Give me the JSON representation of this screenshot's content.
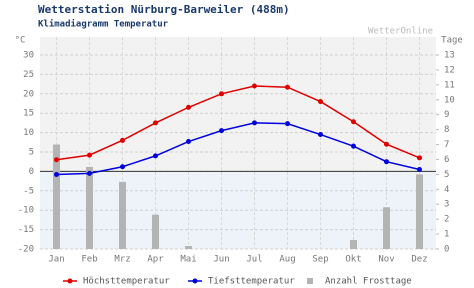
{
  "chart_data": {
    "type": "line",
    "title": "Wetterstation Nürburg-Barweiler (488m)",
    "subtitle": "Klimadiagramm Temperatur",
    "source": "WetterOnline",
    "y_label": "°C",
    "y2_label": "Tage",
    "categories": [
      "Jan",
      "Feb",
      "Mrz",
      "Apr",
      "Mai",
      "Jun",
      "Jul",
      "Aug",
      "Sep",
      "Okt",
      "Nov",
      "Dez"
    ],
    "series": [
      {
        "name": "Höchsttemperatur",
        "color": "#e00000",
        "values": [
          3,
          4.2,
          8,
          12.5,
          16.5,
          20,
          22,
          21.7,
          18,
          12.8,
          7,
          3.5
        ]
      },
      {
        "name": "Tiefsttemperatur",
        "color": "#0000dd",
        "values": [
          -0.8,
          -0.5,
          1.2,
          4,
          7.7,
          10.5,
          12.5,
          12.3,
          9.5,
          6.5,
          2.5,
          0.5
        ]
      },
      {
        "name": "Anzahl Frosttage",
        "color": "#b4b4b4",
        "axis": "y2",
        "type": "bar",
        "values": [
          7,
          5.5,
          4.5,
          2.3,
          0.2,
          0,
          0,
          0,
          0,
          0.6,
          2.8,
          5
        ]
      }
    ],
    "ylim": [
      -20,
      30
    ],
    "yticks": [
      -20,
      -15,
      -10,
      -5,
      0,
      5,
      10,
      15,
      20,
      25,
      30
    ],
    "y2lim": [
      0,
      13
    ],
    "y2ticks": [
      0,
      1,
      2,
      3,
      4,
      5,
      6,
      7,
      8,
      9,
      10,
      11,
      12,
      13
    ],
    "grid": true
  }
}
